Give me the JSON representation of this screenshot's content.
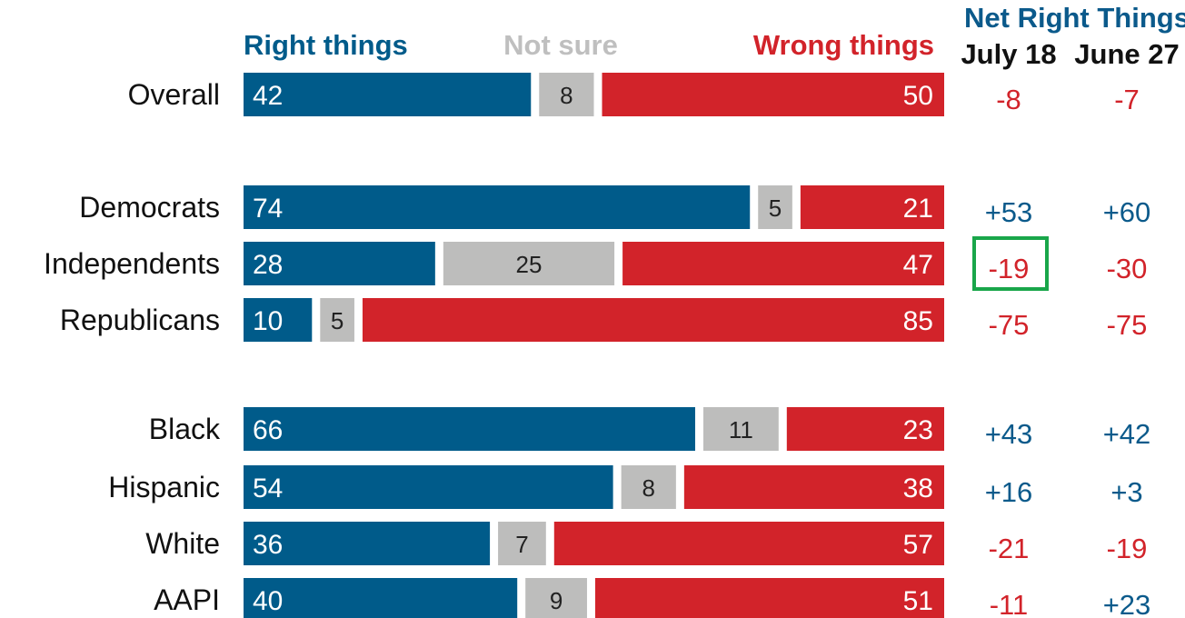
{
  "legend": {
    "right": "Right things",
    "notsure": "Not sure",
    "wrong": "Wrong things"
  },
  "net_header": {
    "title": "Net Right Things",
    "col1": "July 18",
    "col2": "June 27"
  },
  "colors": {
    "right": "#005b8a",
    "notsure": "#bdbdbc",
    "wrong": "#d2232a",
    "positive": "#0b5a8b",
    "negative": "#d2232a",
    "highlight": "#19a64a",
    "header_notsure": "#bfbfbf"
  },
  "chart_data": {
    "type": "bar",
    "stacked": true,
    "orientation": "horizontal",
    "categories": [
      "Overall",
      "Democrats",
      "Independents",
      "Republicans",
      "Black",
      "Hispanic",
      "White",
      "AAPI"
    ],
    "series": [
      {
        "name": "Right things",
        "values": [
          42,
          74,
          28,
          10,
          66,
          54,
          36,
          40
        ]
      },
      {
        "name": "Not sure",
        "values": [
          8,
          5,
          25,
          5,
          11,
          8,
          7,
          9
        ]
      },
      {
        "name": "Wrong things",
        "values": [
          50,
          21,
          47,
          85,
          23,
          38,
          57,
          51
        ]
      }
    ],
    "net_july18": [
      "-8",
      "+53",
      "-19",
      "-75",
      "+43",
      "+16",
      "-21",
      "-11"
    ],
    "net_june27": [
      "-7",
      "+60",
      "-30",
      "-75",
      "+42",
      "+3",
      "-19",
      "+23"
    ],
    "highlighted": {
      "row": "Independents",
      "column": "July 18"
    },
    "xlim": [
      0,
      100
    ],
    "legend_position": "top"
  }
}
